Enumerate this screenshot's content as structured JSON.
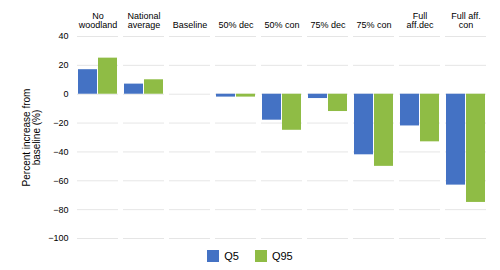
{
  "chart_data": {
    "type": "bar",
    "categories": [
      "No\nwoodland",
      "National\naverage",
      "Baseline",
      "50% dec",
      "50% con",
      "75% dec",
      "75% con",
      "Full\naff.dec",
      "Full aff.\ncon"
    ],
    "series": [
      {
        "name": "Q5",
        "color": "#4472c4",
        "values": [
          17,
          7,
          0,
          -2,
          -18,
          -3,
          -42,
          -22,
          -63
        ]
      },
      {
        "name": "Q95",
        "color": "#8fbc45",
        "values": [
          25,
          10,
          0,
          -2,
          -25,
          -12,
          -50,
          -33,
          -75
        ]
      }
    ],
    "ylabel": "Percent increase from\nbaseline (%)",
    "ylim": [
      -100,
      40
    ],
    "yticks": [
      -100,
      -80,
      -60,
      -40,
      -20,
      0,
      20,
      40
    ],
    "grid": true,
    "legend": "lower center"
  }
}
